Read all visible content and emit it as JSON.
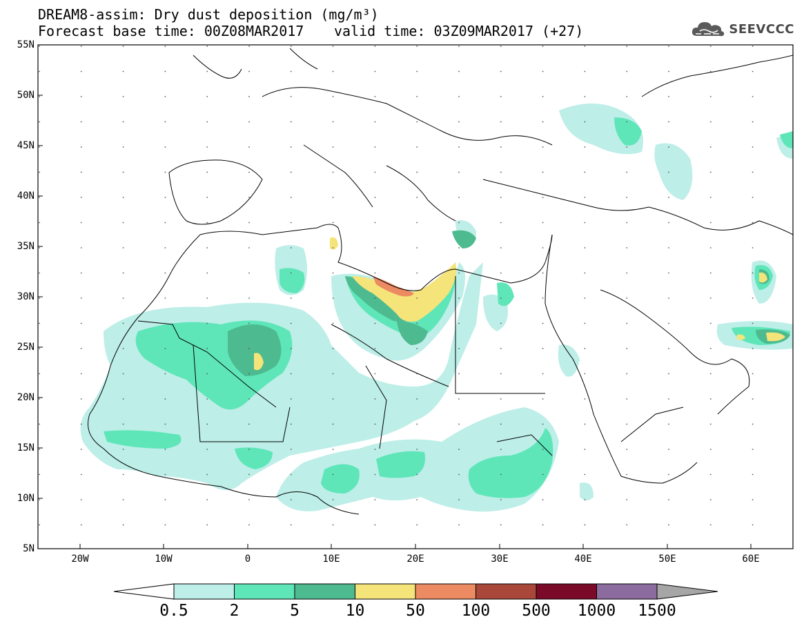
{
  "title": {
    "line1": "DREAM8-assim: Dry dust deposition (mg/m³)",
    "line2": "Forecast base time: 00Z08MAR2017",
    "line3": "valid time: 03Z09MAR2017 (+27)"
  },
  "logo": {
    "text": "SEEVCCC",
    "icon": "cloud-icon"
  },
  "lat_labels": [
    "55N",
    "50N",
    "45N",
    "40N",
    "35N",
    "30N",
    "25N",
    "20N",
    "15N",
    "10N",
    "5N"
  ],
  "lon_labels": [
    "20W",
    "10W",
    "0",
    "10E",
    "20E",
    "30E",
    "40E",
    "50E",
    "60E"
  ],
  "colorbar": {
    "labels": [
      "0.5",
      "2",
      "5",
      "10",
      "50",
      "100",
      "500",
      "1000",
      "1500"
    ],
    "colors": [
      "#bdeee8",
      "#5ee6b9",
      "#4dba8f",
      "#f5e47a",
      "#ec8a62",
      "#a8473a",
      "#7a0a28",
      "#8c6b9e"
    ],
    "under_color": "#ffffff",
    "over_color": "#a6a6a6"
  }
}
